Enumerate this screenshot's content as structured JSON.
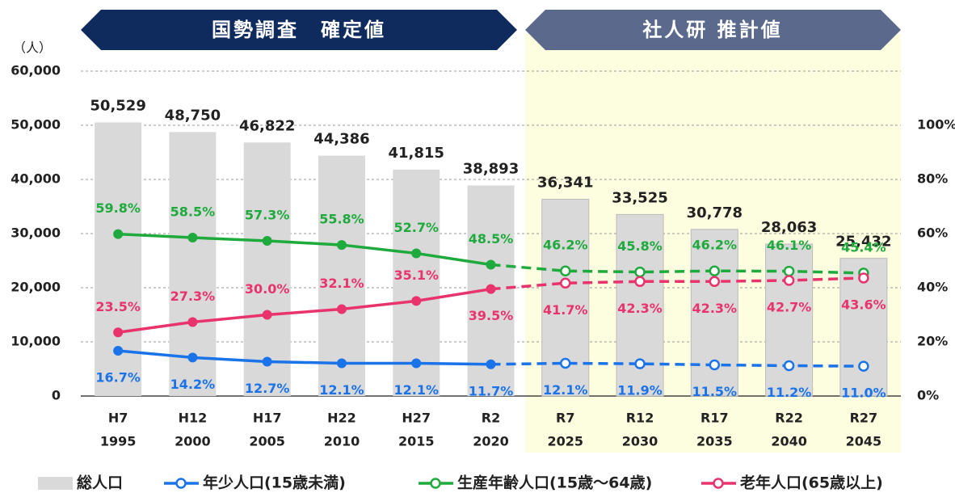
{
  "chart_data": {
    "type": "bar-line",
    "banners": [
      "国勢調査　確定値",
      "社人研 推計値"
    ],
    "y_unit": "（人）",
    "categories": [
      "H7",
      "H12",
      "H17",
      "H22",
      "H27",
      "R2",
      "R7",
      "R12",
      "R17",
      "R22",
      "R27"
    ],
    "years": [
      "1995",
      "2000",
      "2005",
      "2010",
      "2015",
      "2020",
      "2025",
      "2030",
      "2035",
      "2040",
      "2045"
    ],
    "projection_from": "R7",
    "ylim": [
      0,
      60000
    ],
    "yticks": [
      0,
      {
        "value": 10000,
        "label": "10,000"
      },
      {
        "value": 20000,
        "label": "20,000"
      },
      {
        "value": 30000,
        "label": "30,000"
      },
      {
        "value": 40000,
        "label": "40,000"
      },
      {
        "value": 50000,
        "label": "50,000"
      },
      {
        "value": 60000,
        "label": "60,000"
      }
    ],
    "y2lim": [
      0,
      120
    ],
    "y2ticks": [
      {
        "value": 0,
        "label": "0%"
      },
      {
        "value": 20,
        "label": "20%"
      },
      {
        "value": 40,
        "label": "40%"
      },
      {
        "value": 60,
        "label": "60%"
      },
      {
        "value": 80,
        "label": "80%"
      },
      {
        "value": 100,
        "label": "100%"
      }
    ],
    "grid": true,
    "series": [
      {
        "name": "総人口",
        "color": "#d9d9d9",
        "kind": "bar",
        "values": [
          50529,
          48750,
          46822,
          44386,
          41815,
          38893,
          36341,
          33525,
          30778,
          28063,
          25432
        ],
        "value_labels": [
          "50,529",
          "48,750",
          "46,822",
          "44,386",
          "41,815",
          "38,893",
          "36,341",
          "33,525",
          "30,778",
          "28,063",
          "25,432"
        ]
      },
      {
        "name": "年少人口(15歳未満)",
        "color": "#1a73e8",
        "kind": "line",
        "axis": "y2",
        "values": [
          16.7,
          14.2,
          12.7,
          12.1,
          12.1,
          11.7,
          12.1,
          11.9,
          11.5,
          11.2,
          11.0
        ],
        "value_labels": [
          "16.7%",
          "14.2%",
          "12.7%",
          "12.1%",
          "12.1%",
          "11.7%",
          "12.1%",
          "11.9%",
          "11.5%",
          "11.2%",
          "11.0%"
        ]
      },
      {
        "name": "生産年齢人口(15歳～64歳)",
        "color": "#1eaa3c",
        "kind": "line",
        "axis": "y2",
        "values": [
          59.8,
          58.5,
          57.3,
          55.8,
          52.7,
          48.5,
          46.2,
          45.8,
          46.2,
          46.1,
          45.4
        ],
        "value_labels": [
          "59.8%",
          "58.5%",
          "57.3%",
          "55.8%",
          "52.7%",
          "48.5%",
          "46.2%",
          "45.8%",
          "46.2%",
          "46.1%",
          "45.4%"
        ]
      },
      {
        "name": "老年人口(65歳以上)",
        "color": "#e8336d",
        "kind": "line",
        "axis": "y2",
        "values": [
          23.5,
          27.3,
          30.0,
          32.1,
          35.1,
          39.5,
          41.7,
          42.3,
          42.3,
          42.7,
          43.6
        ],
        "value_labels": [
          "23.5%",
          "27.3%",
          "30.0%",
          "32.1%",
          "35.1%",
          "39.5%",
          "41.7%",
          "42.3%",
          "42.3%",
          "42.7%",
          "43.6%"
        ]
      }
    ]
  }
}
